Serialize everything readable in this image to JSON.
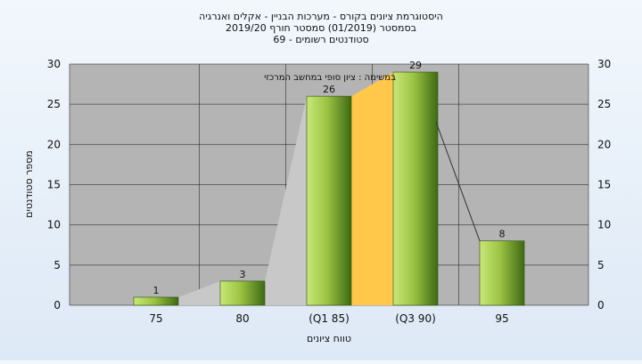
{
  "title_lines": [
    "היסטוגרמת ציונים בקורס - מערכות הבניין - אקלים ואנרגיה",
    "בסמסטר  (01/2019)  סמסטר חורף 2019/20",
    "סטודנטים רשומים - 69"
  ],
  "colors": {
    "plot_bg": "#b4b4b4",
    "bar_light": "#c8e878",
    "bar_dark": "#3e6a12",
    "area_fill": "#c8c8c8",
    "highlight": "#ffc84a",
    "line": "#333333"
  },
  "chart_data": {
    "type": "bar",
    "categories": [
      "75",
      "80",
      "(Q1 85)",
      "(Q3 90)",
      "95"
    ],
    "values": [
      1,
      3,
      26,
      29,
      8
    ],
    "data_labels": [
      "1",
      "3",
      "26",
      "29",
      "8"
    ],
    "ylabel": "מספר סטודנטים",
    "xlabel": "טווח ציונים",
    "ylim": [
      0,
      30
    ],
    "yticks": [
      "0",
      "5",
      "10",
      "15",
      "20",
      "25",
      "30"
    ],
    "grid": true,
    "annotation": "במשימה : ציון סופי במחשב המרכזי",
    "highlight_range": [
      "(Q1 85)",
      "(Q3 90)"
    ]
  }
}
